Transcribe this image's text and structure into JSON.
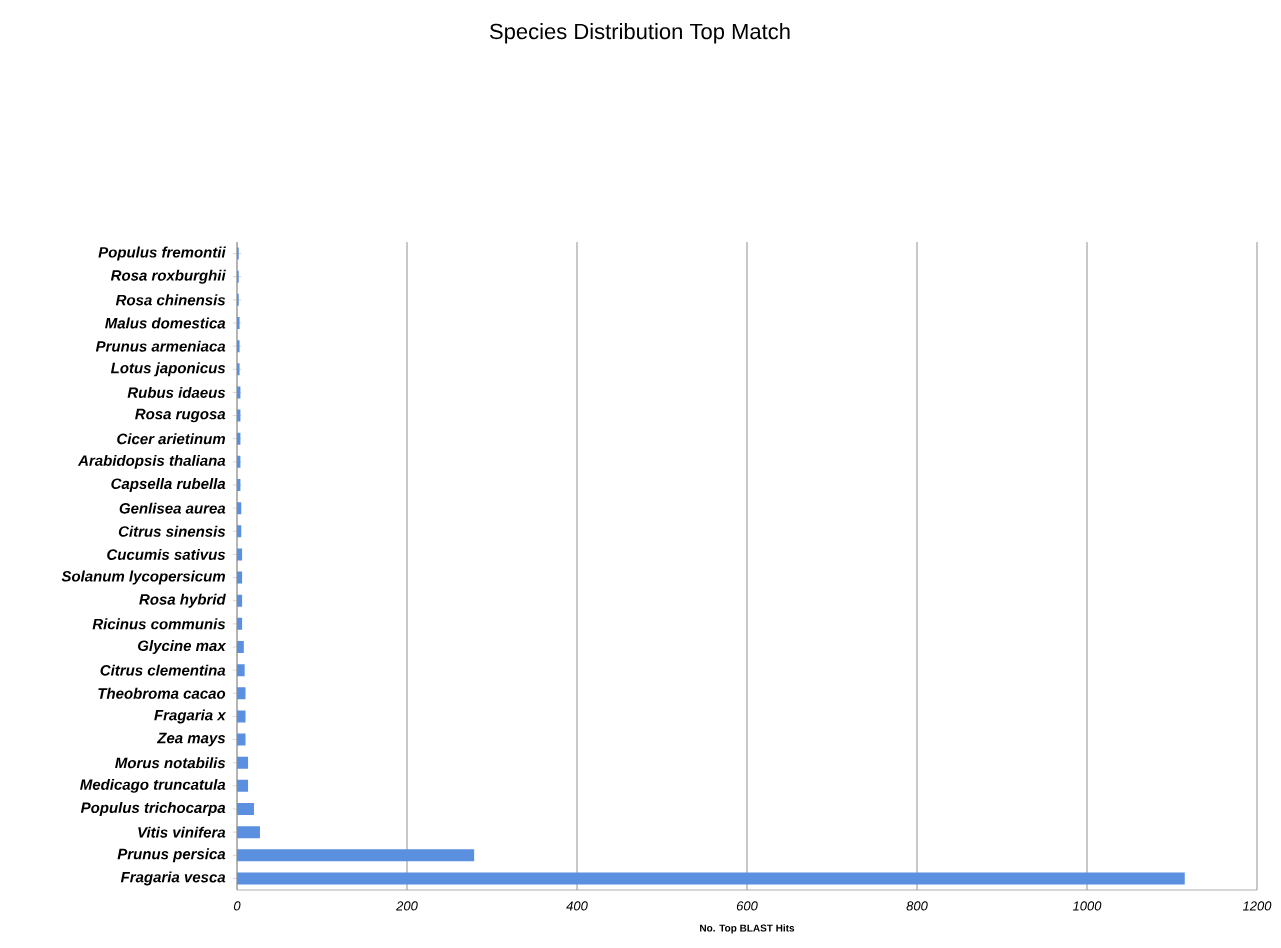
{
  "chart_data": {
    "type": "bar",
    "orientation": "horizontal",
    "title": "Species Distribution Top Match",
    "xlabel": "No. Top BLAST Hits",
    "categories": [
      "Populus fremontii",
      "Rosa roxburghii",
      "Rosa chinensis",
      "Malus domestica",
      "Prunus armeniaca",
      "Lotus japonicus",
      "Rubus idaeus",
      "Rosa rugosa",
      "Cicer arietinum",
      "Arabidopsis thaliana",
      "Capsella rubella",
      "Genlisea aurea",
      "Citrus sinensis",
      "Cucumis sativus",
      "Solanum lycopersicum",
      "Rosa hybrid",
      "Ricinus communis",
      "Glycine max",
      "Citrus clementina",
      "Theobroma cacao",
      "Fragaria x",
      "Zea mays",
      "Morus notabilis",
      "Medicago truncatula",
      "Populus trichocarpa",
      "Vitis vinifera",
      "Prunus persica",
      "Fragaria vesca"
    ],
    "values": [
      2,
      2,
      2,
      3,
      3,
      3,
      4,
      4,
      4,
      4,
      4,
      5,
      5,
      6,
      6,
      6,
      6,
      8,
      9,
      10,
      10,
      10,
      13,
      13,
      20,
      27,
      279,
      1115
    ],
    "color": "#5b8fe0",
    "xlim": [
      0,
      1200
    ],
    "xticks": [
      0,
      200,
      400,
      600,
      800,
      1000,
      1200
    ],
    "grid": "x"
  }
}
